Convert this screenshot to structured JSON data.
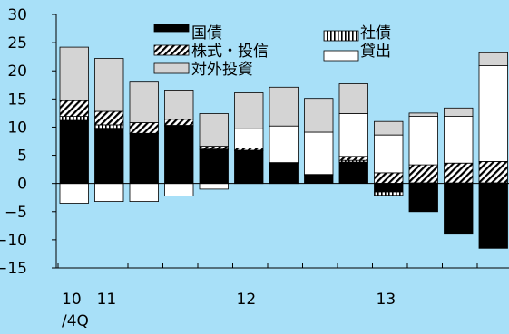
{
  "chart_data": {
    "type": "bar",
    "stacked": true,
    "title": "",
    "xlabel": "",
    "ylabel": "",
    "ylim": [
      -15,
      30
    ],
    "yticks": [
      -15,
      -10,
      -5,
      0,
      5,
      10,
      15,
      20,
      25,
      30
    ],
    "x_labels": [
      {
        "index": 0,
        "lines": [
          "10",
          "/4Q"
        ]
      },
      {
        "index": 1,
        "lines": [
          "11"
        ]
      },
      {
        "index": 5,
        "lines": [
          "12"
        ]
      },
      {
        "index": 9,
        "lines": [
          "13"
        ]
      }
    ],
    "grid": false,
    "series": [
      {
        "name": "国債",
        "color": "#000000",
        "pattern": "solid",
        "values": [
          11.2,
          9.8,
          8.8,
          10.2,
          6.0,
          5.8,
          3.6,
          1.5,
          3.8,
          -1.5,
          -5.0,
          -9.0,
          -11.5
        ]
      },
      {
        "name": "社債",
        "color": "#ffffff",
        "pattern": "vertical",
        "values": [
          0.7,
          0.6,
          0.1,
          0.1,
          0.1,
          0.1,
          0.1,
          0.1,
          0.3,
          -0.6,
          0.1,
          0.1,
          0.1
        ]
      },
      {
        "name": "株式・投信",
        "color": "#ffffff",
        "pattern": "diagonal",
        "values": [
          2.8,
          2.4,
          1.9,
          1.1,
          0.5,
          0.4,
          0.0,
          0.0,
          0.7,
          1.9,
          3.2,
          3.5,
          3.8
        ]
      },
      {
        "name": "貸出",
        "color": "#ffffff",
        "pattern": "solid",
        "values": [
          -3.5,
          -3.2,
          -3.2,
          -2.2,
          -1.0,
          3.4,
          6.5,
          7.5,
          7.6,
          6.7,
          8.6,
          8.3,
          17.0
        ]
      },
      {
        "name": "対外投資",
        "color": "#d4d4d4",
        "pattern": "solid",
        "values": [
          9.5,
          9.4,
          7.2,
          5.2,
          5.8,
          6.4,
          6.9,
          6.0,
          5.3,
          2.4,
          0.6,
          1.5,
          2.3
        ]
      }
    ]
  }
}
